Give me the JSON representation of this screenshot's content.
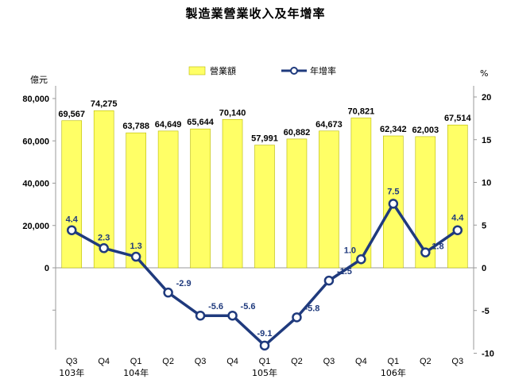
{
  "chart_data": {
    "type": "bar",
    "title": "製造業營業收入及年增率",
    "left_unit": "億元",
    "right_unit": "%",
    "categories": [
      "Q3",
      "Q4",
      "Q1",
      "Q2",
      "Q3",
      "Q4",
      "Q1",
      "Q2",
      "Q3",
      "Q4",
      "Q1",
      "Q2",
      "Q3"
    ],
    "year_labels": [
      "103年",
      "",
      "104年",
      "",
      "",
      "",
      "105年",
      "",
      "",
      "",
      "106年",
      "",
      ""
    ],
    "series": [
      {
        "name": "營業額",
        "type": "bar",
        "axis": "left",
        "color": "#FFFF66",
        "values": [
          69567,
          74275,
          63788,
          64649,
          65644,
          70140,
          57991,
          60882,
          64673,
          70821,
          62342,
          62003,
          67514
        ],
        "labels": [
          "69,567",
          "74,275",
          "63,788",
          "64,649",
          "65,644",
          "70,140",
          "57,991",
          "60,882",
          "64,673",
          "70,821",
          "62,342",
          "62,003",
          "67,514"
        ]
      },
      {
        "name": "年增率",
        "type": "line",
        "axis": "right",
        "color": "#1F3A7D",
        "values": [
          4.4,
          2.3,
          1.3,
          -2.9,
          -5.6,
          -5.6,
          -9.1,
          -5.8,
          -1.5,
          1.0,
          7.5,
          1.8,
          4.4
        ],
        "labels": [
          "4.4",
          "2.3",
          "1.3",
          "-2.9",
          "-5.6",
          "-5.6",
          "-9.1",
          "-5.8",
          "-1.5",
          "1.0",
          "7.5",
          "1.8",
          "4.4"
        ]
      }
    ],
    "left_axis": {
      "ylim": [
        -40000,
        80000
      ],
      "ticks": [
        80000,
        60000,
        40000,
        20000,
        0
      ],
      "tick_labels": [
        "80,000",
        "60,000",
        "40,000",
        "20,000",
        "0"
      ]
    },
    "right_axis": {
      "ylim": [
        -10,
        20
      ],
      "ticks": [
        20,
        15,
        10,
        5,
        0,
        -5,
        -10
      ],
      "tick_labels": [
        "20",
        "15",
        "10",
        "5",
        "0",
        "-5",
        "-10"
      ]
    },
    "grid": false,
    "legend_position": "top"
  },
  "colors": {
    "bar_fill": "#FFFF66",
    "bar_stroke": "#B8B800",
    "line": "#1F3A7D",
    "label_text": "#1F3A7D",
    "axis": "#999999"
  }
}
